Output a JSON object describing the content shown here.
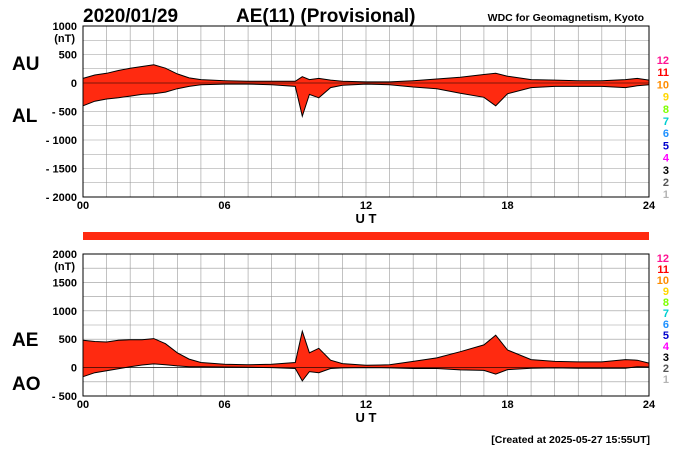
{
  "header": {
    "date": "2020/01/29",
    "index_title": "AE(11) (Provisional)",
    "organization": "WDC for Geomagnetism, Kyoto"
  },
  "footer": {
    "created": "[Created at 2025-05-27 15:55UT]"
  },
  "colors": {
    "fill": "#ff2a10",
    "grid": "#999999",
    "line": "#000000",
    "bar": "#ff2a10"
  },
  "scale_legend": {
    "numbers": [
      "12",
      "11",
      "10",
      "9",
      "8",
      "7",
      "6",
      "5",
      "4",
      "3",
      "2",
      "1"
    ],
    "colors": [
      "#ff1493",
      "#ff0000",
      "#ff8c00",
      "#ffd700",
      "#7fff00",
      "#00ced1",
      "#1e90ff",
      "#0000cd",
      "#ff00ff",
      "#000000",
      "#555555",
      "#b4b4b4"
    ]
  },
  "chart_data": [
    {
      "type": "area",
      "id": "au-al",
      "unit_label": "(nT)",
      "upper_label": "AU",
      "lower_label": "AL",
      "ylim": [
        -2000,
        1000
      ],
      "yticks": [
        "1000",
        "500",
        "0",
        "- 500",
        "- 1000",
        "- 1500",
        "- 2000"
      ],
      "ytick_values": [
        1000,
        500,
        0,
        -500,
        -1000,
        -1500,
        -2000
      ],
      "xlabel": "U T",
      "xlim": [
        0,
        24
      ],
      "xticks": [
        "00",
        "06",
        "12",
        "18",
        "24"
      ],
      "xtick_values": [
        0,
        6,
        12,
        18,
        24
      ],
      "upper_series": {
        "name": "AU",
        "x": [
          0,
          0.5,
          1,
          1.5,
          2,
          2.5,
          3,
          3.5,
          4,
          4.5,
          5,
          6,
          7,
          8,
          9,
          9.3,
          9.6,
          10,
          10.5,
          11,
          12,
          13,
          14,
          15,
          16,
          17,
          17.5,
          18,
          19,
          20,
          21,
          22,
          23,
          23.5,
          24
        ],
        "values": [
          80,
          140,
          170,
          220,
          260,
          290,
          320,
          260,
          160,
          90,
          60,
          40,
          30,
          30,
          30,
          110,
          60,
          80,
          50,
          30,
          20,
          20,
          40,
          70,
          100,
          150,
          170,
          120,
          60,
          50,
          40,
          40,
          60,
          80,
          50
        ]
      },
      "lower_series": {
        "name": "AL",
        "x": [
          0,
          0.5,
          1,
          1.5,
          2,
          2.5,
          3,
          3.5,
          4,
          4.5,
          5,
          6,
          7,
          8,
          9,
          9.3,
          9.6,
          10,
          10.5,
          11,
          12,
          13,
          14,
          15,
          16,
          17,
          17.5,
          18,
          19,
          20,
          21,
          22,
          23,
          23.5,
          24
        ],
        "values": [
          -400,
          -320,
          -280,
          -260,
          -230,
          -200,
          -190,
          -160,
          -100,
          -60,
          -30,
          -20,
          -20,
          -30,
          -60,
          -580,
          -200,
          -260,
          -80,
          -40,
          -20,
          -30,
          -70,
          -100,
          -180,
          -250,
          -400,
          -190,
          -80,
          -60,
          -60,
          -60,
          -80,
          -50,
          -30
        ]
      }
    },
    {
      "type": "area",
      "id": "ae-ao",
      "unit_label": "(nT)",
      "upper_label": "AE",
      "lower_label": "AO",
      "ylim": [
        -500,
        2000
      ],
      "yticks": [
        "2000",
        "1500",
        "1000",
        "500",
        "0",
        "- 500"
      ],
      "ytick_values": [
        2000,
        1500,
        1000,
        500,
        0,
        -500
      ],
      "xlabel": "U T",
      "xlim": [
        0,
        24
      ],
      "xticks": [
        "00",
        "06",
        "12",
        "18",
        "24"
      ],
      "xtick_values": [
        0,
        6,
        12,
        18,
        24
      ],
      "upper_series": {
        "name": "AE",
        "x": [
          0,
          0.5,
          1,
          1.5,
          2,
          2.5,
          3,
          3.5,
          4,
          4.5,
          5,
          6,
          7,
          8,
          9,
          9.3,
          9.6,
          10,
          10.5,
          11,
          12,
          13,
          14,
          15,
          16,
          17,
          17.5,
          18,
          19,
          20,
          21,
          22,
          23,
          23.5,
          24
        ],
        "values": [
          480,
          460,
          450,
          480,
          490,
          490,
          510,
          420,
          260,
          150,
          90,
          60,
          50,
          60,
          90,
          640,
          260,
          340,
          130,
          70,
          40,
          50,
          110,
          170,
          280,
          400,
          570,
          310,
          140,
          110,
          100,
          100,
          140,
          130,
          80
        ]
      },
      "lower_series": {
        "name": "AO",
        "x": [
          0,
          0.5,
          1,
          1.5,
          2,
          2.5,
          3,
          3.5,
          4,
          4.5,
          5,
          6,
          7,
          8,
          9,
          9.3,
          9.6,
          10,
          10.5,
          11,
          12,
          13,
          14,
          15,
          16,
          17,
          17.5,
          18,
          19,
          20,
          21,
          22,
          23,
          23.5,
          24
        ],
        "values": [
          -160,
          -90,
          -55,
          -20,
          15,
          45,
          65,
          50,
          30,
          15,
          15,
          10,
          5,
          0,
          -15,
          -235,
          -70,
          -90,
          -15,
          -5,
          0,
          -5,
          -15,
          -15,
          -40,
          -50,
          -115,
          -35,
          -10,
          -5,
          -10,
          -10,
          -10,
          15,
          10
        ]
      }
    }
  ]
}
